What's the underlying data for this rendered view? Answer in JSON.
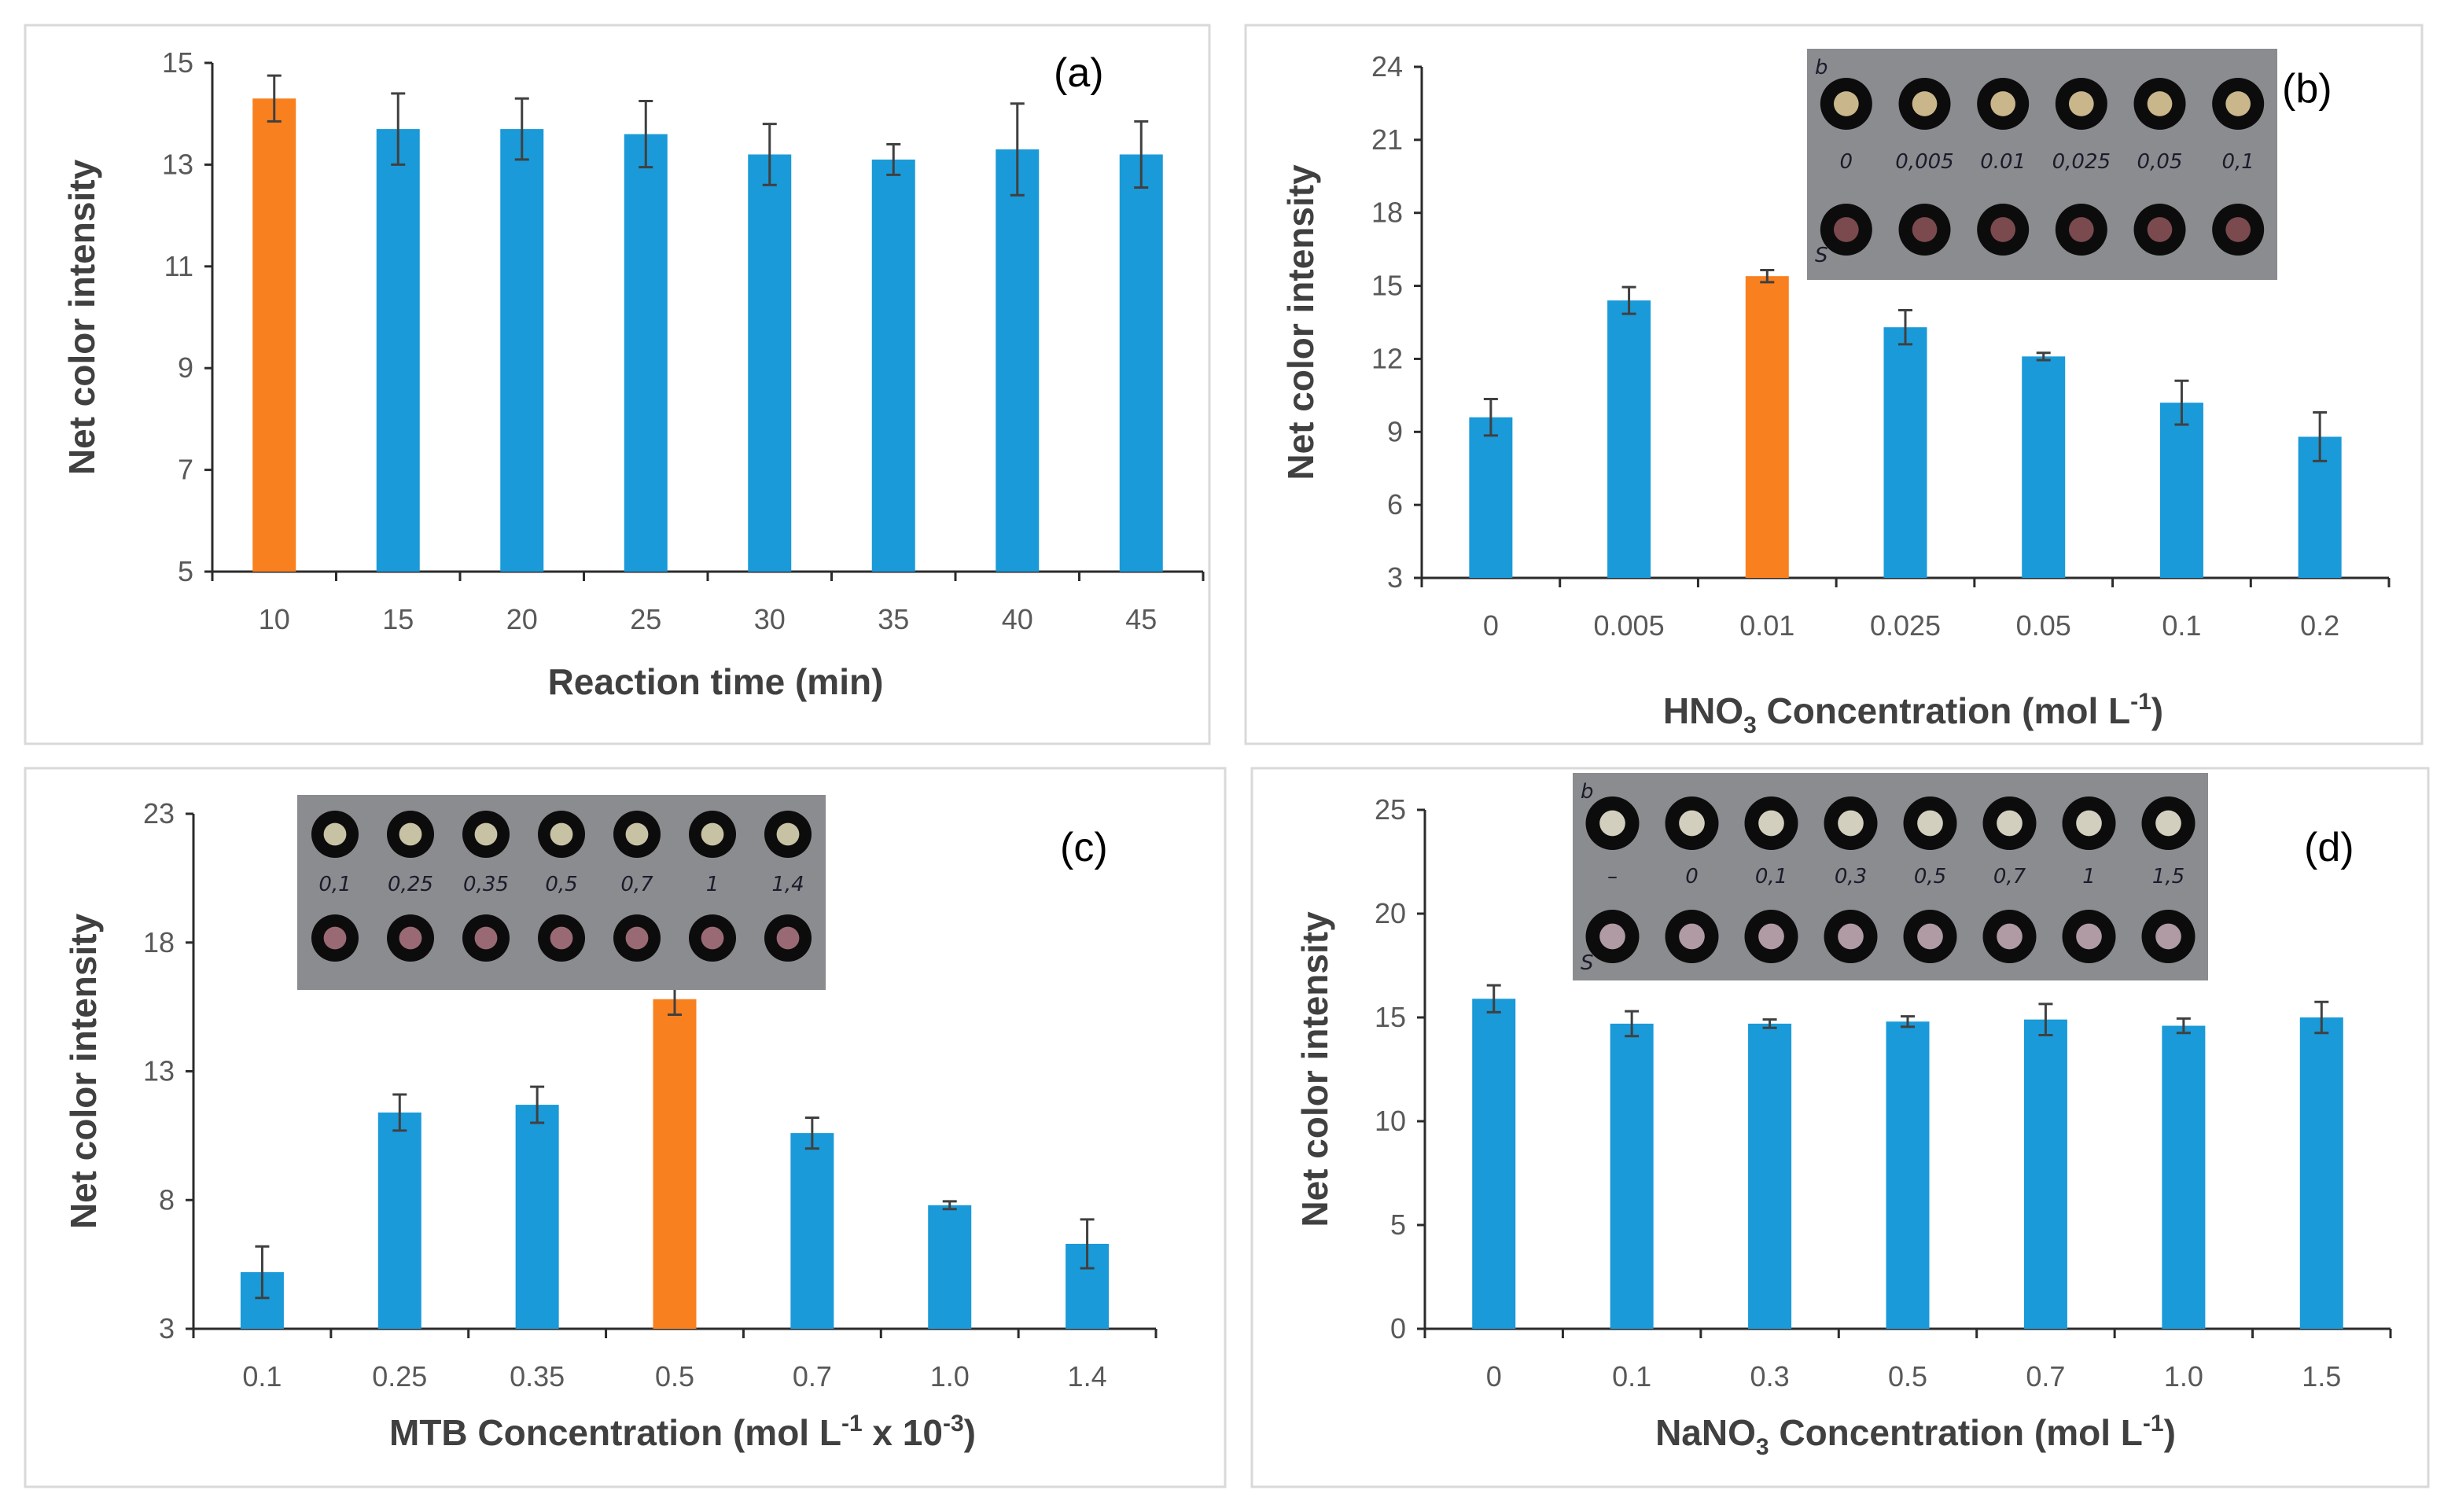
{
  "colors": {
    "bar_default": "#1a9ad8",
    "bar_highlight": "#f8801f",
    "axis": "#2b2b2b",
    "label": "#595959",
    "title": "#404040"
  },
  "chart_data": [
    {
      "id": "a",
      "type": "bar",
      "panel_label": "(a)",
      "title": "",
      "xlabel": "Reaction time (min)",
      "xlabel_parts": [
        "Reaction time (min)"
      ],
      "ylabel": "Net color intensity",
      "categories": [
        "10",
        "15",
        "20",
        "25",
        "30",
        "35",
        "40",
        "45"
      ],
      "values": [
        14.3,
        13.7,
        13.7,
        13.6,
        13.2,
        13.1,
        13.3,
        13.2
      ],
      "errors": [
        0.45,
        0.7,
        0.6,
        0.65,
        0.6,
        0.3,
        0.9,
        0.65
      ],
      "highlight_index": 0,
      "ylim": [
        5,
        15
      ],
      "yticks": [
        "5",
        "7",
        "9",
        "11",
        "13",
        "15"
      ],
      "photo": null
    },
    {
      "id": "b",
      "type": "bar",
      "panel_label": "(b)",
      "title": "",
      "xlabel": "HNO3 Concentration (mol L-1)",
      "xlabel_parts": [
        "HNO",
        "3",
        " Concentration (mol L",
        "-1",
        ")"
      ],
      "ylabel": "Net color intensity",
      "categories": [
        "0",
        "0.005",
        "0.01",
        "0.025",
        "0.05",
        "0.1",
        "0.2"
      ],
      "values": [
        9.6,
        14.4,
        15.4,
        13.3,
        12.1,
        10.2,
        8.8
      ],
      "errors": [
        0.75,
        0.55,
        0.25,
        0.7,
        0.15,
        0.9,
        1.0
      ],
      "highlight_index": 2,
      "ylim": [
        3,
        24
      ],
      "yticks": [
        "3",
        "6",
        "9",
        "12",
        "15",
        "18",
        "21",
        "24"
      ],
      "photo": {
        "top_letter": "b",
        "bottom_letter": "S",
        "labels": [
          "0",
          "0,005",
          "0.01",
          "0,025",
          "0,05",
          "0,1"
        ]
      }
    },
    {
      "id": "c",
      "type": "bar",
      "panel_label": "(c)",
      "title": "",
      "xlabel": "MTB Concentration (mol L-1 x 10-3)",
      "xlabel_parts": [
        "MTB Concentration (mol L",
        "-1",
        " x 10",
        "-3",
        ")"
      ],
      "ylabel": "Net color intensity",
      "categories": [
        "0.1",
        "0.25",
        "0.35",
        "0.5",
        "0.7",
        "1.0",
        "1.4"
      ],
      "values": [
        5.2,
        11.4,
        11.7,
        15.8,
        10.6,
        7.8,
        6.3
      ],
      "errors": [
        1.0,
        0.7,
        0.7,
        0.6,
        0.6,
        0.15,
        0.95
      ],
      "highlight_index": 3,
      "ylim": [
        3,
        23
      ],
      "yticks": [
        "3",
        "8",
        "13",
        "18",
        "23"
      ],
      "photo": {
        "top_letter": "",
        "bottom_letter": "",
        "labels": [
          "0,1",
          "0,25",
          "0,35",
          "0,5",
          "0,7",
          "1",
          "1,4"
        ]
      }
    },
    {
      "id": "d",
      "type": "bar",
      "panel_label": "(d)",
      "title": "",
      "xlabel": "NaNO3 Concentration (mol L-1)",
      "xlabel_parts": [
        "NaNO",
        "3",
        " Concentration (mol L",
        "-1",
        ")"
      ],
      "ylabel": "Net color intensity",
      "categories": [
        "0",
        "0.1",
        "0.3",
        "0.5",
        "0.7",
        "1.0",
        "1.5"
      ],
      "values": [
        15.9,
        14.7,
        14.7,
        14.8,
        14.9,
        14.6,
        15.0
      ],
      "errors": [
        0.65,
        0.6,
        0.2,
        0.25,
        0.75,
        0.35,
        0.75
      ],
      "highlight_index": -1,
      "ylim": [
        0,
        25
      ],
      "yticks": [
        "0",
        "5",
        "10",
        "15",
        "20",
        "25"
      ],
      "photo": {
        "top_letter": "b",
        "bottom_letter": "S",
        "labels": [
          "–",
          "0",
          "0,1",
          "0,3",
          "0,5",
          "0,7",
          "1",
          "1,5"
        ]
      }
    }
  ]
}
